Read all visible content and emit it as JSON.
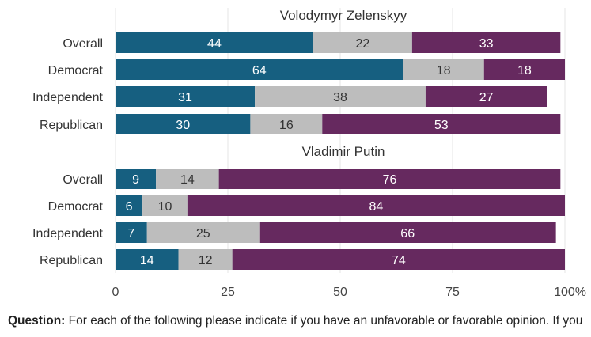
{
  "chart_data": {
    "type": "bar",
    "stacked": true,
    "orientation": "horizontal",
    "axis": {
      "ticks": [
        "0",
        "25",
        "50",
        "75",
        "100%"
      ],
      "xlim": [
        0,
        100
      ],
      "grid": true
    },
    "colors": {
      "favorable": "#165f80",
      "neutral": "#bdbdbd",
      "unfavorable": "#66295f"
    },
    "panels": [
      {
        "title": "Volodymyr Zelenskyy",
        "categories": [
          "Overall",
          "Democrat",
          "Independent",
          "Republican"
        ],
        "series": [
          {
            "values": [
              44,
              64,
              31,
              30
            ]
          },
          {
            "values": [
              22,
              18,
              38,
              16
            ]
          },
          {
            "values": [
              33,
              18,
              27,
              53
            ]
          }
        ]
      },
      {
        "title": "Vladimir Putin",
        "categories": [
          "Overall",
          "Democrat",
          "Independent",
          "Republican"
        ],
        "series": [
          {
            "values": [
              9,
              6,
              7,
              14
            ]
          },
          {
            "values": [
              14,
              10,
              25,
              12
            ]
          },
          {
            "values": [
              76,
              84,
              66,
              74
            ]
          }
        ]
      }
    ]
  },
  "footer": {
    "question_label": "Question:",
    "question_text": "For each of the following please indicate if you have an unfavorable or favorable opinion. If you don't know enough to have an opinion, you can say that too."
  }
}
